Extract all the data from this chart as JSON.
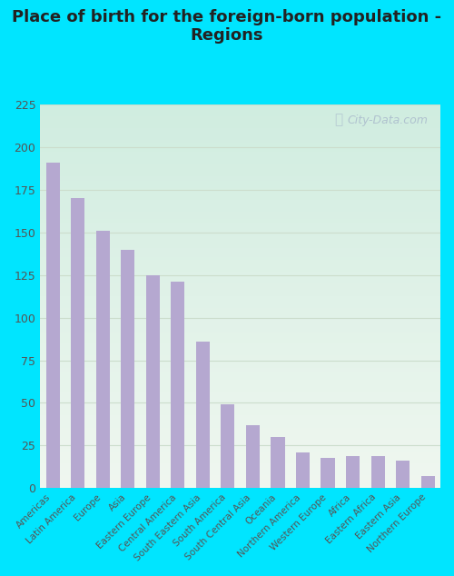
{
  "title": "Place of birth for the foreign-born population -\nRegions",
  "categories": [
    "Americas",
    "Latin America",
    "Europe",
    "Asia",
    "Eastern Europe",
    "Central America",
    "South Eastern Asia",
    "South America",
    "South Central Asia",
    "Oceania",
    "Northern America",
    "Western Europe",
    "Africa",
    "Eastern Africa",
    "Eastern Asia",
    "Northern Europe"
  ],
  "values": [
    191,
    170,
    151,
    140,
    125,
    121,
    86,
    49,
    37,
    30,
    21,
    18,
    19,
    19,
    16,
    7
  ],
  "bar_color": "#b5a8d0",
  "bar_edge_color": "none",
  "figure_bg_color": "#00e5ff",
  "plot_bg_gradient_top": "#f0f7f0",
  "plot_bg_gradient_bottom": "#d0ede0",
  "ylim": [
    0,
    225
  ],
  "yticks": [
    0,
    25,
    50,
    75,
    100,
    125,
    150,
    175,
    200,
    225
  ],
  "title_fontsize": 13,
  "title_color": "#222222",
  "tick_label_color": "#555555",
  "grid_color": "#ccddcc",
  "watermark": "City-Data.com",
  "watermark_color": "#aabbcc"
}
